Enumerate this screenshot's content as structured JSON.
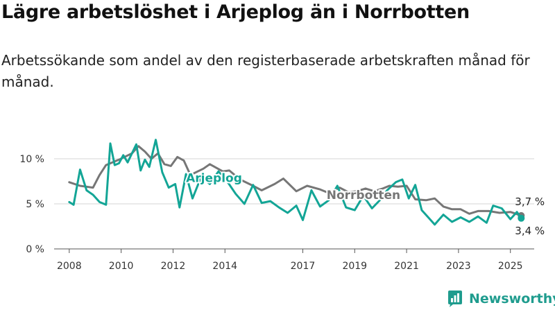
{
  "title": "Lägre arbetslöshet i Arjeplog än i Norrbotten",
  "subtitle": "Arbetssökande som andel av den registerbaserade arbetskraften månad för månad.",
  "brand": {
    "name": "Newsworthy",
    "color": "#1f9c8e"
  },
  "chart_data": {
    "type": "line",
    "y_ticks": [
      {
        "value": 0,
        "label": "0 %"
      },
      {
        "value": 5,
        "label": "5 %"
      },
      {
        "value": 10,
        "label": "10 %"
      }
    ],
    "x_ticks": [
      "2008",
      "2010",
      "2012",
      "2014",
      "2017",
      "2019",
      "2021",
      "2023",
      "2025"
    ],
    "ylim": [
      0,
      13
    ],
    "xlim": [
      "2007-06",
      "2025-12"
    ],
    "grid": true,
    "legend": "inline labels",
    "series": [
      {
        "name": "Arjeplog",
        "color": "#13a596",
        "end_label": "3,4 %",
        "points": [
          [
            "2008-01",
            5.2
          ],
          [
            "2008-03",
            4.9
          ],
          [
            "2008-06",
            8.8
          ],
          [
            "2008-09",
            6.5
          ],
          [
            "2008-12",
            6.0
          ],
          [
            "2009-03",
            5.2
          ],
          [
            "2009-06",
            4.9
          ],
          [
            "2009-08",
            11.7
          ],
          [
            "2009-10",
            9.3
          ],
          [
            "2009-12",
            9.5
          ],
          [
            "2010-02",
            10.4
          ],
          [
            "2010-04",
            9.6
          ],
          [
            "2010-06",
            10.6
          ],
          [
            "2010-08",
            11.6
          ],
          [
            "2010-10",
            8.7
          ],
          [
            "2010-12",
            9.9
          ],
          [
            "2011-02",
            9.1
          ],
          [
            "2011-05",
            12.1
          ],
          [
            "2011-08",
            8.5
          ],
          [
            "2011-11",
            6.8
          ],
          [
            "2012-02",
            7.2
          ],
          [
            "2012-04",
            4.6
          ],
          [
            "2012-07",
            8.3
          ],
          [
            "2012-10",
            5.6
          ],
          [
            "2013-02",
            8.0
          ],
          [
            "2013-06",
            7.2
          ],
          [
            "2013-10",
            8.6
          ],
          [
            "2014-02",
            7.5
          ],
          [
            "2014-06",
            6.1
          ],
          [
            "2014-10",
            5.0
          ],
          [
            "2015-02",
            7.1
          ],
          [
            "2015-06",
            5.1
          ],
          [
            "2015-10",
            5.3
          ],
          [
            "2016-02",
            4.6
          ],
          [
            "2016-06",
            4.0
          ],
          [
            "2016-10",
            4.8
          ],
          [
            "2017-01",
            3.2
          ],
          [
            "2017-05",
            6.5
          ],
          [
            "2017-09",
            4.7
          ],
          [
            "2018-01",
            5.4
          ],
          [
            "2018-05",
            7.0
          ],
          [
            "2018-09",
            4.6
          ],
          [
            "2019-01",
            4.3
          ],
          [
            "2019-05",
            5.9
          ],
          [
            "2019-09",
            4.5
          ],
          [
            "2020-01",
            5.5
          ],
          [
            "2020-04",
            6.5
          ],
          [
            "2020-08",
            7.4
          ],
          [
            "2020-11",
            7.7
          ],
          [
            "2021-02",
            5.6
          ],
          [
            "2021-05",
            7.1
          ],
          [
            "2021-08",
            4.3
          ],
          [
            "2021-11",
            3.5
          ],
          [
            "2022-02",
            2.7
          ],
          [
            "2022-06",
            3.8
          ],
          [
            "2022-10",
            3.0
          ],
          [
            "2023-02",
            3.5
          ],
          [
            "2023-06",
            3.0
          ],
          [
            "2023-10",
            3.6
          ],
          [
            "2024-02",
            2.9
          ],
          [
            "2024-05",
            4.8
          ],
          [
            "2024-09",
            4.5
          ],
          [
            "2025-01",
            3.3
          ],
          [
            "2025-04",
            4.1
          ],
          [
            "2025-06",
            3.4
          ]
        ]
      },
      {
        "name": "Norrbotten",
        "color": "#767676",
        "end_label": "3,7 %",
        "points": [
          [
            "2008-01",
            7.4
          ],
          [
            "2008-06",
            7.0
          ],
          [
            "2008-12",
            6.8
          ],
          [
            "2009-03",
            8.2
          ],
          [
            "2009-06",
            9.3
          ],
          [
            "2009-12",
            9.9
          ],
          [
            "2010-06",
            10.6
          ],
          [
            "2010-09",
            11.4
          ],
          [
            "2010-12",
            10.8
          ],
          [
            "2011-03",
            10.0
          ],
          [
            "2011-06",
            10.6
          ],
          [
            "2011-09",
            9.4
          ],
          [
            "2011-12",
            9.2
          ],
          [
            "2012-03",
            10.2
          ],
          [
            "2012-06",
            9.8
          ],
          [
            "2012-09",
            8.2
          ],
          [
            "2013-03",
            8.9
          ],
          [
            "2013-06",
            9.4
          ],
          [
            "2013-12",
            8.6
          ],
          [
            "2014-03",
            8.7
          ],
          [
            "2014-08",
            7.7
          ],
          [
            "2015-02",
            7.0
          ],
          [
            "2015-06",
            6.5
          ],
          [
            "2015-12",
            7.2
          ],
          [
            "2016-04",
            7.8
          ],
          [
            "2016-10",
            6.4
          ],
          [
            "2017-03",
            7.0
          ],
          [
            "2017-09",
            6.6
          ],
          [
            "2018-01",
            6.2
          ],
          [
            "2018-06",
            6.8
          ],
          [
            "2018-10",
            6.3
          ],
          [
            "2019-02",
            6.4
          ],
          [
            "2019-06",
            6.7
          ],
          [
            "2019-10",
            6.4
          ],
          [
            "2020-02",
            6.7
          ],
          [
            "2020-05",
            7.0
          ],
          [
            "2020-09",
            6.9
          ],
          [
            "2021-01",
            7.0
          ],
          [
            "2021-05",
            5.5
          ],
          [
            "2021-10",
            5.4
          ],
          [
            "2022-02",
            5.6
          ],
          [
            "2022-06",
            4.7
          ],
          [
            "2022-10",
            4.4
          ],
          [
            "2023-02",
            4.4
          ],
          [
            "2023-06",
            3.9
          ],
          [
            "2023-10",
            4.2
          ],
          [
            "2024-03",
            4.2
          ],
          [
            "2024-08",
            4.0
          ],
          [
            "2025-01",
            4.1
          ],
          [
            "2025-06",
            3.7
          ]
        ]
      }
    ]
  }
}
